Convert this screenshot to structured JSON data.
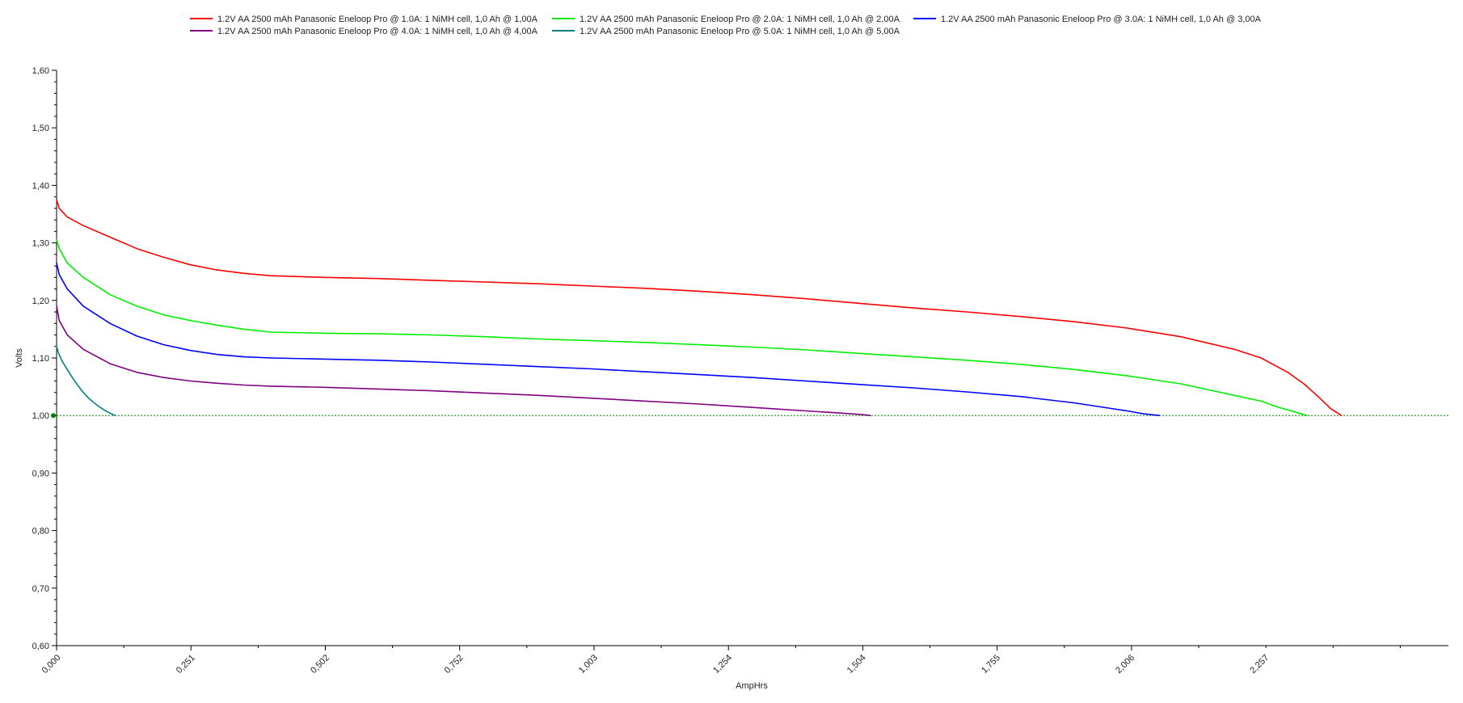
{
  "chart_data": {
    "type": "line",
    "title": "",
    "xlabel": "AmpHrs",
    "ylabel": "Volts",
    "xlim": [
      0,
      2.6
    ],
    "ylim": [
      0.6,
      1.6
    ],
    "x_ticks": [
      "0,000",
      "0,251",
      "0,502",
      "0,752",
      "1,003",
      "1,254",
      "1,504",
      "1,755",
      "2,006",
      "2,257"
    ],
    "x_tick_values": [
      0,
      0.251,
      0.502,
      0.752,
      1.003,
      1.254,
      1.504,
      1.755,
      2.006,
      2.257
    ],
    "y_ticks": [
      "0,60",
      "0,70",
      "0,80",
      "0,90",
      "1,00",
      "1,10",
      "1,20",
      "1,30",
      "1,40",
      "1,50",
      "1,60"
    ],
    "y_tick_values": [
      0.6,
      0.7,
      0.8,
      0.9,
      1.0,
      1.1,
      1.2,
      1.3,
      1.4,
      1.5,
      1.6
    ],
    "grid": false,
    "legend_position": "top",
    "reference_line": {
      "y": 1.0,
      "color": "#008000",
      "style": "dotted"
    },
    "series": [
      {
        "name": "1.2V AA 2500 mAh Panasonic Eneloop Pro @ 1.0A: 1 NiMH cell, 1,0 Ah @ 1,00A",
        "color": "#ff0000",
        "x": [
          0,
          0.005,
          0.02,
          0.05,
          0.1,
          0.15,
          0.2,
          0.25,
          0.3,
          0.35,
          0.4,
          0.5,
          0.6,
          0.7,
          0.8,
          0.9,
          1.0,
          1.1,
          1.2,
          1.3,
          1.4,
          1.5,
          1.6,
          1.7,
          1.8,
          1.9,
          2.0,
          2.1,
          2.2,
          2.25,
          2.3,
          2.33,
          2.36,
          2.38,
          2.4
        ],
        "y": [
          1.375,
          1.36,
          1.345,
          1.33,
          1.31,
          1.29,
          1.275,
          1.262,
          1.253,
          1.247,
          1.243,
          1.24,
          1.238,
          1.235,
          1.232,
          1.229,
          1.225,
          1.221,
          1.216,
          1.21,
          1.203,
          1.195,
          1.187,
          1.18,
          1.172,
          1.163,
          1.152,
          1.137,
          1.115,
          1.1,
          1.075,
          1.055,
          1.03,
          1.012,
          1.0
        ]
      },
      {
        "name": "1.2V AA 2500 mAh Panasonic Eneloop Pro @ 2.0A: 1 NiMH cell, 1,0 Ah @ 2,00A",
        "color": "#00ee00",
        "x": [
          0,
          0.005,
          0.02,
          0.05,
          0.1,
          0.15,
          0.2,
          0.25,
          0.3,
          0.35,
          0.4,
          0.5,
          0.6,
          0.7,
          0.8,
          0.9,
          1.0,
          1.1,
          1.2,
          1.3,
          1.4,
          1.5,
          1.6,
          1.7,
          1.8,
          1.9,
          2.0,
          2.1,
          2.2,
          2.25,
          2.28,
          2.31,
          2.335
        ],
        "y": [
          1.305,
          1.29,
          1.265,
          1.24,
          1.21,
          1.19,
          1.175,
          1.165,
          1.157,
          1.15,
          1.145,
          1.143,
          1.142,
          1.14,
          1.137,
          1.133,
          1.13,
          1.127,
          1.123,
          1.119,
          1.114,
          1.108,
          1.102,
          1.096,
          1.089,
          1.08,
          1.069,
          1.055,
          1.035,
          1.025,
          1.015,
          1.007,
          1.0
        ]
      },
      {
        "name": "1.2V AA 2500 mAh Panasonic Eneloop Pro @ 3.0A: 1 NiMH cell, 1,0 Ah @ 3,00A",
        "color": "#0000ff",
        "x": [
          0,
          0.005,
          0.02,
          0.05,
          0.1,
          0.15,
          0.2,
          0.25,
          0.3,
          0.35,
          0.4,
          0.5,
          0.6,
          0.7,
          0.8,
          0.9,
          1.0,
          1.1,
          1.2,
          1.3,
          1.4,
          1.5,
          1.6,
          1.7,
          1.8,
          1.9,
          1.95,
          2.0,
          2.03,
          2.06
        ],
        "y": [
          1.265,
          1.245,
          1.22,
          1.19,
          1.16,
          1.138,
          1.123,
          1.113,
          1.106,
          1.102,
          1.1,
          1.098,
          1.096,
          1.093,
          1.089,
          1.085,
          1.081,
          1.076,
          1.071,
          1.066,
          1.06,
          1.054,
          1.048,
          1.041,
          1.033,
          1.022,
          1.015,
          1.008,
          1.003,
          1.0
        ]
      },
      {
        "name": "1.2V AA 2500 mAh Panasonic Eneloop Pro @ 4.0A: 1 NiMH cell, 1,0 Ah @ 4,00A",
        "color": "#800080",
        "x": [
          0,
          0.005,
          0.02,
          0.05,
          0.1,
          0.15,
          0.2,
          0.25,
          0.3,
          0.35,
          0.4,
          0.5,
          0.6,
          0.7,
          0.8,
          0.9,
          1.0,
          1.1,
          1.2,
          1.3,
          1.4,
          1.45,
          1.5,
          1.52
        ],
        "y": [
          1.19,
          1.165,
          1.14,
          1.115,
          1.09,
          1.075,
          1.066,
          1.06,
          1.056,
          1.053,
          1.051,
          1.049,
          1.046,
          1.043,
          1.039,
          1.035,
          1.03,
          1.025,
          1.02,
          1.014,
          1.008,
          1.005,
          1.002,
          1.0
        ]
      },
      {
        "name": "1.2V AA 2500 mAh Panasonic Eneloop Pro @ 5.0A: 1 NiMH cell, 1,0 Ah @ 5,00A",
        "color": "#008080",
        "x": [
          0,
          0.003,
          0.01,
          0.02,
          0.03,
          0.04,
          0.05,
          0.06,
          0.07,
          0.08,
          0.09,
          0.1,
          0.105,
          0.11
        ],
        "y": [
          1.12,
          1.11,
          1.095,
          1.08,
          1.065,
          1.052,
          1.04,
          1.03,
          1.022,
          1.015,
          1.009,
          1.004,
          1.002,
          1.0
        ]
      }
    ]
  }
}
